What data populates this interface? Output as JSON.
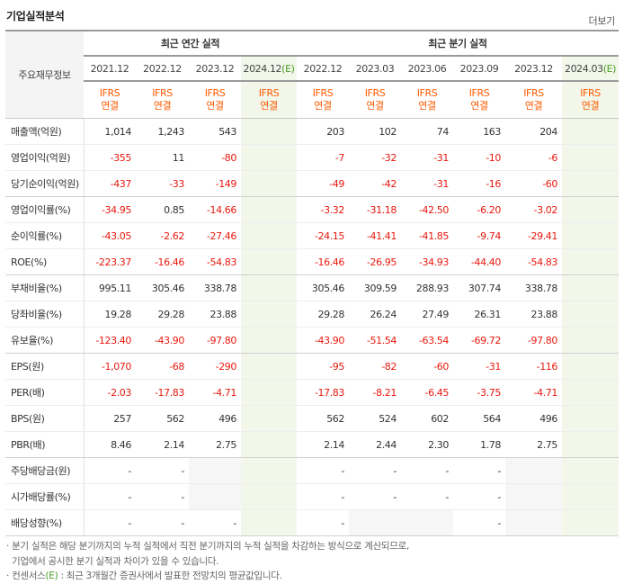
{
  "section_title": "기업실적분석",
  "more_label": "더보기",
  "row_header": "주요재무정보",
  "groups": {
    "annual": "최근 연간 실적",
    "quarter": "최근 분기 실적"
  },
  "periods": [
    {
      "label": "2021.12",
      "est": ""
    },
    {
      "label": "2022.12",
      "est": ""
    },
    {
      "label": "2023.12",
      "est": ""
    },
    {
      "label": "2024.12",
      "est": "(E)"
    },
    {
      "label": "2022.12",
      "est": ""
    },
    {
      "label": "2023.03",
      "est": ""
    },
    {
      "label": "2023.06",
      "est": ""
    },
    {
      "label": "2023.09",
      "est": ""
    },
    {
      "label": "2023.12",
      "est": ""
    },
    {
      "label": "2024.03",
      "est": "(E)"
    }
  ],
  "ifrs": {
    "line1": "IFRS",
    "line2": "연결"
  },
  "rows": [
    {
      "label": "매출액(억원)",
      "values": [
        "1,014",
        "1,243",
        "543",
        "",
        "203",
        "102",
        "74",
        "163",
        "204",
        ""
      ]
    },
    {
      "label": "영업이익(억원)",
      "values": [
        "-355",
        "11",
        "-80",
        "",
        "-7",
        "-32",
        "-31",
        "-10",
        "-6",
        ""
      ]
    },
    {
      "label": "당기순이익(억원)",
      "values": [
        "-437",
        "-33",
        "-149",
        "",
        "-49",
        "-42",
        "-31",
        "-16",
        "-60",
        ""
      ]
    },
    {
      "label": "영업이익률(%)",
      "values": [
        "-34.95",
        "0.85",
        "-14.66",
        "",
        "-3.32",
        "-31.18",
        "-42.50",
        "-6.20",
        "-3.02",
        ""
      ]
    },
    {
      "label": "순이익률(%)",
      "values": [
        "-43.05",
        "-2.62",
        "-27.46",
        "",
        "-24.15",
        "-41.41",
        "-41.85",
        "-9.74",
        "-29.41",
        ""
      ]
    },
    {
      "label": "ROE(%)",
      "values": [
        "-223.37",
        "-16.46",
        "-54.83",
        "",
        "-16.46",
        "-26.95",
        "-34.93",
        "-44.40",
        "-54.83",
        ""
      ]
    },
    {
      "label": "부채비율(%)",
      "values": [
        "995.11",
        "305.46",
        "338.78",
        "",
        "305.46",
        "309.59",
        "288.93",
        "307.74",
        "338.78",
        ""
      ]
    },
    {
      "label": "당좌비율(%)",
      "values": [
        "19.28",
        "29.28",
        "23.88",
        "",
        "29.28",
        "26.24",
        "27.49",
        "26.31",
        "23.88",
        ""
      ]
    },
    {
      "label": "유보율(%)",
      "values": [
        "-123.40",
        "-43.90",
        "-97.80",
        "",
        "-43.90",
        "-51.54",
        "-63.54",
        "-69.72",
        "-97.80",
        ""
      ]
    },
    {
      "label": "EPS(원)",
      "values": [
        "-1,070",
        "-68",
        "-290",
        "",
        "-95",
        "-82",
        "-60",
        "-31",
        "-116",
        ""
      ]
    },
    {
      "label": "PER(배)",
      "values": [
        "-2.03",
        "-17.83",
        "-4.71",
        "",
        "-17.83",
        "-8.21",
        "-6.45",
        "-3.75",
        "-4.71",
        ""
      ]
    },
    {
      "label": "BPS(원)",
      "values": [
        "257",
        "562",
        "496",
        "",
        "562",
        "524",
        "602",
        "564",
        "496",
        ""
      ]
    },
    {
      "label": "PBR(배)",
      "values": [
        "8.46",
        "2.14",
        "2.75",
        "",
        "2.14",
        "2.44",
        "2.30",
        "1.78",
        "2.75",
        ""
      ]
    },
    {
      "label": "주당배당금(원)",
      "values": [
        "-",
        "-",
        "",
        "",
        "-",
        "-",
        "-",
        "-",
        "",
        ""
      ]
    },
    {
      "label": "시가배당률(%)",
      "values": [
        "-",
        "-",
        "",
        "",
        "-",
        "-",
        "-",
        "-",
        "",
        ""
      ]
    },
    {
      "label": "배당성향(%)",
      "values": [
        "-",
        "-",
        "-",
        "",
        "-",
        "",
        "",
        "-",
        "",
        ""
      ]
    }
  ],
  "notes": {
    "line1": "· 분기 실적은 해당 분기까지의 누적 실적에서 직전 분기까지의 누적 실적을 차감하는 방식으로 계산되므로,",
    "line2": "기업에서 공시한 분기 실적과 차이가 있을 수 있습니다.",
    "line3_prefix": "· 컨센서스",
    "line3_e": "(E)",
    "line3_suffix": " : 최근 3개월간 증권사에서 발표한 전망치의 평균값입니다."
  }
}
